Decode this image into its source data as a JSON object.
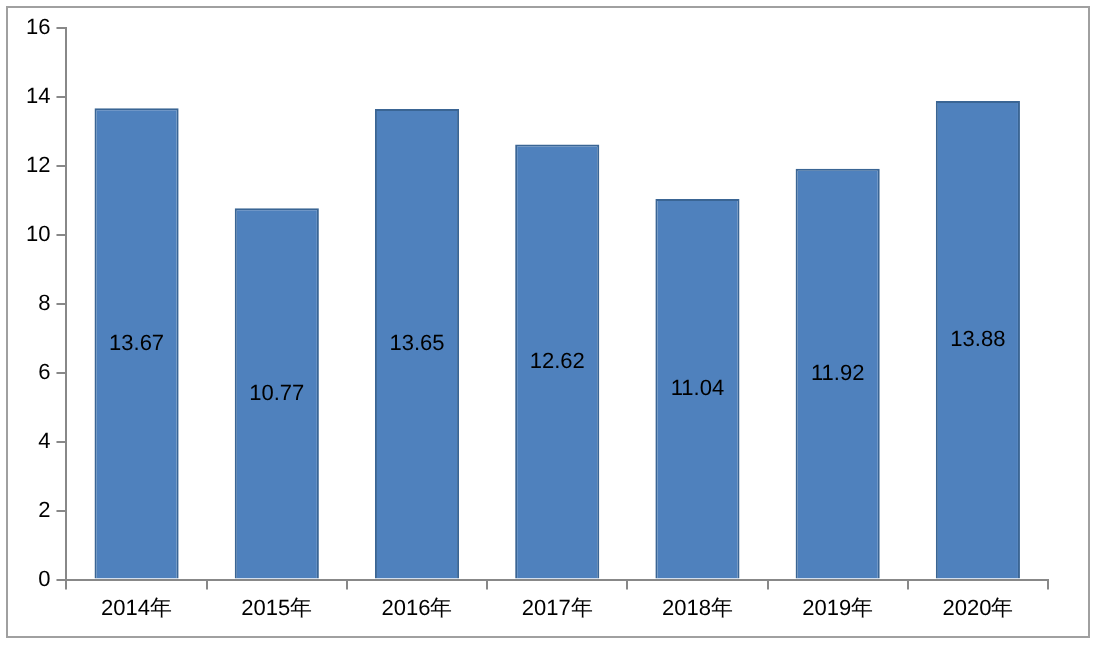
{
  "chart_data": {
    "type": "bar",
    "categories": [
      "2014年",
      "2015年",
      "2016年",
      "2017年",
      "2018年",
      "2019年",
      "2020年"
    ],
    "values": [
      13.67,
      10.77,
      13.65,
      12.62,
      11.04,
      11.92,
      13.88
    ],
    "color": "#4f81bd",
    "ylim": [
      0,
      16
    ],
    "yticks": [
      0,
      2,
      4,
      6,
      8,
      10,
      12,
      14,
      16
    ],
    "grid": false,
    "legend": false,
    "data_labels": true
  }
}
